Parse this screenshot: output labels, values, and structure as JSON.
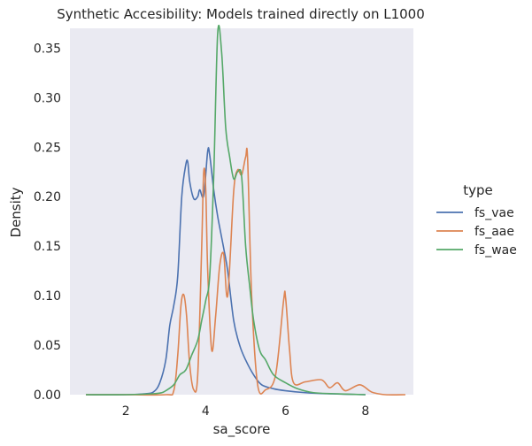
{
  "chart_data": {
    "type": "line",
    "title": "Synthetic Accesibility: Models trained directly on L1000",
    "xlabel": "sa_score",
    "ylabel": "Density",
    "xlim": [
      0.6,
      9.2
    ],
    "ylim": [
      0,
      0.37
    ],
    "xticks": [
      2,
      4,
      6,
      8
    ],
    "yticks": [
      0.0,
      0.05,
      0.1,
      0.15,
      0.2,
      0.25,
      0.3,
      0.35
    ],
    "ytick_labels": [
      "0.00",
      "0.05",
      "0.10",
      "0.15",
      "0.20",
      "0.25",
      "0.30",
      "0.35"
    ],
    "grid": false,
    "background": "#eaeaf2",
    "legend": {
      "title": "type",
      "placement": "outside-right"
    },
    "series": [
      {
        "name": "fs_vae",
        "color": "#4c72b0",
        "points": [
          [
            1.0,
            0.0
          ],
          [
            2.0,
            0.0
          ],
          [
            2.5,
            0.001
          ],
          [
            2.7,
            0.003
          ],
          [
            2.85,
            0.012
          ],
          [
            3.0,
            0.035
          ],
          [
            3.1,
            0.07
          ],
          [
            3.2,
            0.09
          ],
          [
            3.3,
            0.12
          ],
          [
            3.4,
            0.2
          ],
          [
            3.5,
            0.232
          ],
          [
            3.55,
            0.235
          ],
          [
            3.6,
            0.215
          ],
          [
            3.7,
            0.198
          ],
          [
            3.8,
            0.2
          ],
          [
            3.85,
            0.207
          ],
          [
            3.95,
            0.201
          ],
          [
            4.05,
            0.246
          ],
          [
            4.1,
            0.242
          ],
          [
            4.2,
            0.207
          ],
          [
            4.3,
            0.18
          ],
          [
            4.45,
            0.148
          ],
          [
            4.55,
            0.125
          ],
          [
            4.7,
            0.075
          ],
          [
            4.85,
            0.05
          ],
          [
            5.0,
            0.035
          ],
          [
            5.2,
            0.02
          ],
          [
            5.4,
            0.01
          ],
          [
            5.7,
            0.006
          ],
          [
            6.0,
            0.004
          ],
          [
            6.5,
            0.002
          ],
          [
            7.0,
            0.001
          ],
          [
            8.0,
            0.0
          ]
        ]
      },
      {
        "name": "fs_aae",
        "color": "#dd8452",
        "points": [
          [
            1.0,
            0.0
          ],
          [
            2.0,
            0.0
          ],
          [
            3.0,
            0.0
          ],
          [
            3.2,
            0.004
          ],
          [
            3.3,
            0.04
          ],
          [
            3.38,
            0.09
          ],
          [
            3.45,
            0.101
          ],
          [
            3.52,
            0.08
          ],
          [
            3.6,
            0.03
          ],
          [
            3.7,
            0.005
          ],
          [
            3.8,
            0.02
          ],
          [
            3.9,
            0.15
          ],
          [
            3.95,
            0.225
          ],
          [
            4.0,
            0.208
          ],
          [
            4.05,
            0.125
          ],
          [
            4.15,
            0.045
          ],
          [
            4.25,
            0.08
          ],
          [
            4.35,
            0.13
          ],
          [
            4.45,
            0.142
          ],
          [
            4.55,
            0.1
          ],
          [
            4.7,
            0.205
          ],
          [
            4.8,
            0.227
          ],
          [
            4.9,
            0.222
          ],
          [
            5.0,
            0.24
          ],
          [
            5.05,
            0.237
          ],
          [
            5.15,
            0.1
          ],
          [
            5.3,
            0.01
          ],
          [
            5.5,
            0.005
          ],
          [
            5.75,
            0.02
          ],
          [
            5.95,
            0.095
          ],
          [
            6.0,
            0.098
          ],
          [
            6.1,
            0.045
          ],
          [
            6.2,
            0.012
          ],
          [
            6.5,
            0.013
          ],
          [
            6.9,
            0.015
          ],
          [
            7.1,
            0.007
          ],
          [
            7.3,
            0.012
          ],
          [
            7.5,
            0.004
          ],
          [
            7.85,
            0.01
          ],
          [
            8.1,
            0.004
          ],
          [
            8.2,
            0.002
          ],
          [
            8.5,
            0.0
          ],
          [
            9.0,
            0.0
          ]
        ]
      },
      {
        "name": "fs_wae",
        "color": "#55a868",
        "points": [
          [
            1.0,
            0.0
          ],
          [
            2.0,
            0.0
          ],
          [
            2.7,
            0.001
          ],
          [
            2.9,
            0.002
          ],
          [
            3.0,
            0.004
          ],
          [
            3.2,
            0.01
          ],
          [
            3.35,
            0.02
          ],
          [
            3.5,
            0.025
          ],
          [
            3.65,
            0.04
          ],
          [
            3.8,
            0.055
          ],
          [
            3.9,
            0.075
          ],
          [
            4.0,
            0.095
          ],
          [
            4.1,
            0.12
          ],
          [
            4.2,
            0.22
          ],
          [
            4.3,
            0.365
          ],
          [
            4.4,
            0.345
          ],
          [
            4.5,
            0.27
          ],
          [
            4.6,
            0.24
          ],
          [
            4.7,
            0.218
          ],
          [
            4.8,
            0.225
          ],
          [
            4.9,
            0.22
          ],
          [
            5.0,
            0.15
          ],
          [
            5.1,
            0.11
          ],
          [
            5.2,
            0.075
          ],
          [
            5.35,
            0.045
          ],
          [
            5.5,
            0.035
          ],
          [
            5.7,
            0.02
          ],
          [
            6.0,
            0.012
          ],
          [
            6.3,
            0.006
          ],
          [
            6.7,
            0.002
          ],
          [
            7.2,
            0.001
          ],
          [
            8.0,
            0.0
          ]
        ]
      }
    ]
  }
}
